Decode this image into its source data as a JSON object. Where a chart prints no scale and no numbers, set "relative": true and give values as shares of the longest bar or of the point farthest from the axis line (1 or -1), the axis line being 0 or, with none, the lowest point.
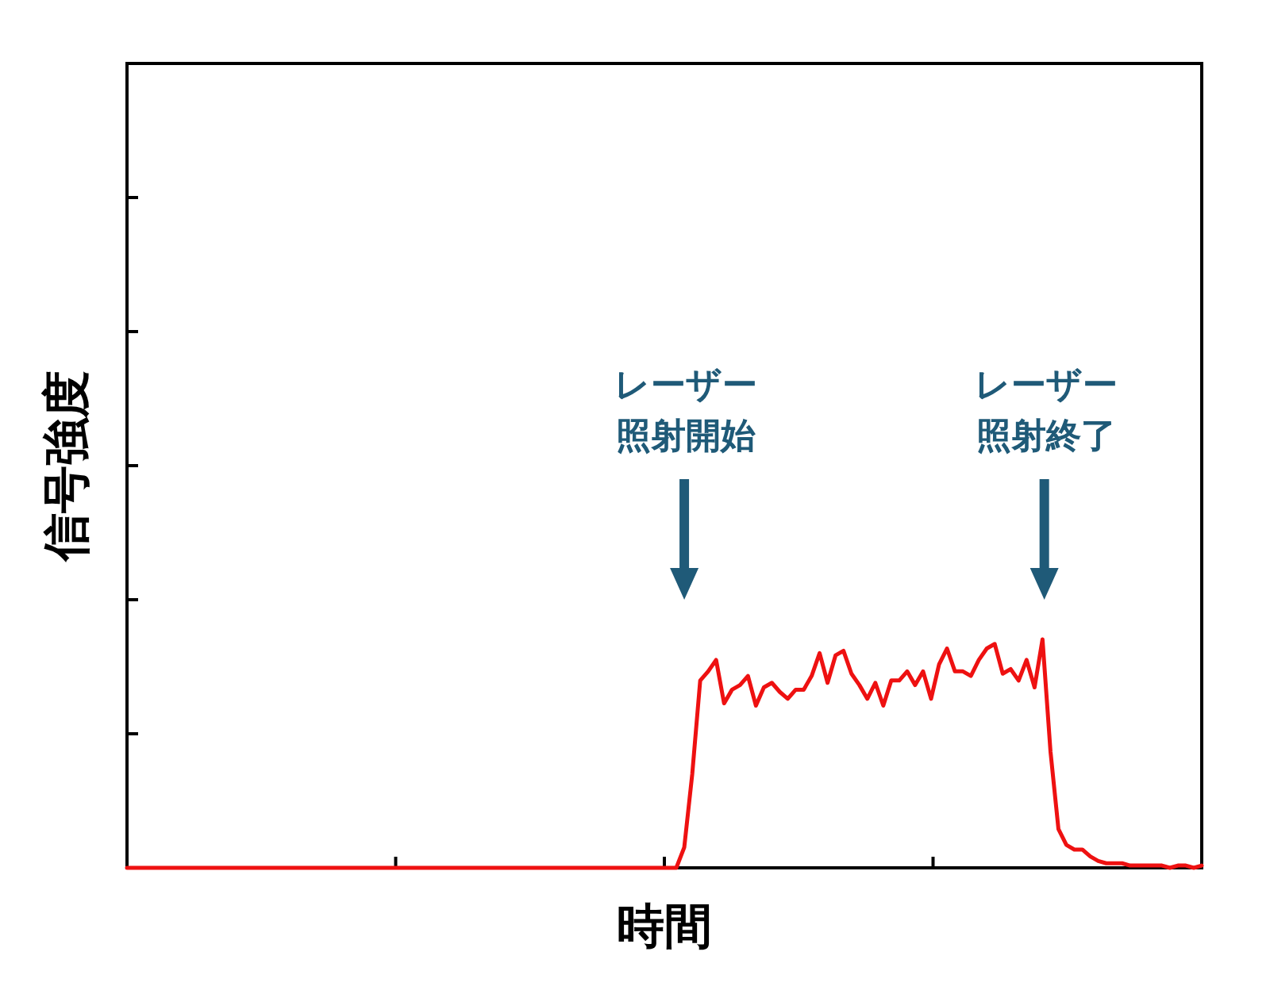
{
  "chart_data": {
    "type": "line",
    "xlabel": "時間",
    "ylabel": "信号強度",
    "relative": true,
    "color": "#ee1111",
    "categories": [
      null,
      null,
      null,
      null,
      null,
      null,
      null,
      null,
      null,
      null,
      null,
      null,
      null,
      null,
      null,
      null,
      null,
      null,
      null,
      null,
      null,
      null,
      null,
      null,
      null,
      null,
      null,
      null,
      null,
      null,
      null,
      null,
      null,
      null,
      null,
      null,
      null,
      null,
      null,
      null,
      null,
      null,
      null,
      null,
      null,
      null,
      null,
      null,
      null,
      null,
      null,
      null,
      null,
      null,
      null,
      null,
      null,
      null,
      null,
      null,
      null,
      null,
      null,
      null,
      null,
      null,
      null,
      null,
      null,
      null,
      null,
      null,
      null,
      null,
      null,
      null,
      null,
      null,
      null,
      null,
      null,
      null,
      null,
      null,
      null,
      null,
      null,
      null,
      null,
      null,
      null,
      null,
      null,
      null,
      null,
      null,
      null,
      null,
      null,
      null,
      null,
      null,
      null,
      null,
      null,
      null,
      null,
      null,
      null,
      null,
      null,
      null,
      null,
      null,
      null,
      null,
      null,
      null,
      null,
      null,
      null,
      null,
      null,
      null,
      null,
      null,
      null,
      null,
      null,
      null,
      null,
      null,
      null,
      null,
      null,
      null
    ],
    "values": [
      0,
      0,
      0,
      0,
      0,
      0,
      0,
      0,
      0,
      0,
      0,
      0,
      0,
      0,
      0,
      0,
      0,
      0,
      0,
      0,
      0,
      0,
      0,
      0,
      0,
      0,
      0,
      0,
      0,
      0,
      0,
      0,
      0,
      0,
      0,
      0,
      0,
      0,
      0,
      0,
      0,
      0,
      0,
      0,
      0,
      0,
      0,
      0,
      0,
      0,
      0,
      0,
      0,
      0,
      0,
      0,
      0,
      0,
      0,
      0,
      0,
      0,
      0,
      0,
      0,
      0,
      0,
      0,
      0,
      0,
      0.09,
      0.41,
      0.82,
      0.86,
      0.91,
      0.72,
      0.78,
      0.8,
      0.84,
      0.71,
      0.79,
      0.81,
      0.77,
      0.74,
      0.78,
      0.78,
      0.84,
      0.94,
      0.81,
      0.93,
      0.95,
      0.85,
      0.8,
      0.74,
      0.81,
      0.71,
      0.82,
      0.82,
      0.86,
      0.8,
      0.86,
      0.74,
      0.89,
      0.96,
      0.86,
      0.86,
      0.84,
      0.91,
      0.96,
      0.98,
      0.85,
      0.87,
      0.82,
      0.91,
      0.79,
      1,
      0.51,
      0.17,
      0.1,
      0.08,
      0.08,
      0.05,
      0.03,
      0.02,
      0.02,
      0.02,
      0.01,
      0.01,
      0.01,
      0.01,
      0.01,
      0,
      0.01,
      0.01,
      0,
      0.01
    ],
    "annotations": [
      "レーザー照射開始",
      "レーザー照射終了"
    ]
  }
}
